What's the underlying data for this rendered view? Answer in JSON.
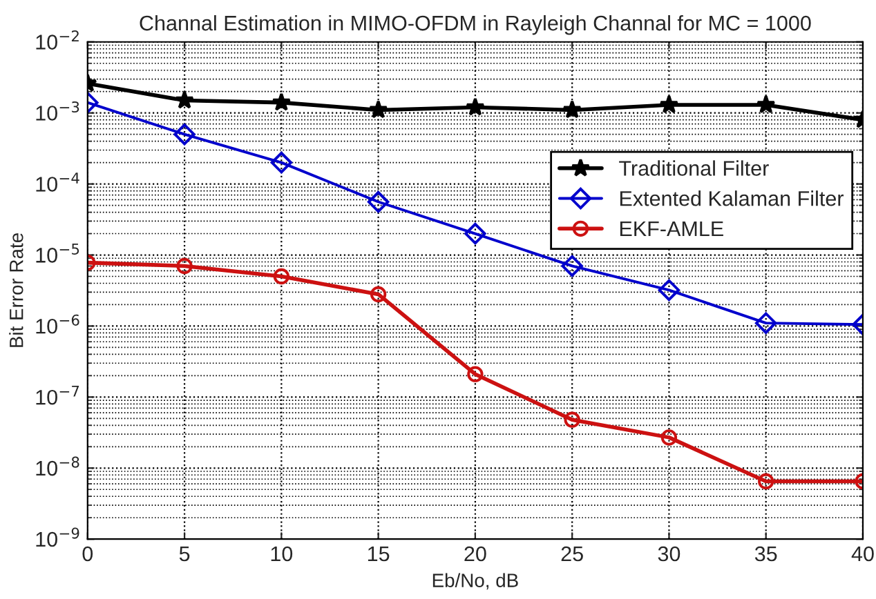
{
  "chart_data": {
    "type": "line",
    "title": "Channal Estimation in MIMO-OFDM in Rayleigh Channal for MC = 1000",
    "xlabel": "Eb/No, dB",
    "ylabel": "Bit Error Rate",
    "x": [
      0,
      5,
      10,
      15,
      20,
      25,
      30,
      35,
      40
    ],
    "series": [
      {
        "name": "Traditional Filter",
        "color": "#000000",
        "marker": "star",
        "values": [
          0.0026,
          0.0015,
          0.0014,
          0.0011,
          0.0012,
          0.0011,
          0.0013,
          0.0013,
          0.0008
        ]
      },
      {
        "name": "Extented Kalaman Filter",
        "color": "#0000cc",
        "marker": "diamond",
        "values": [
          0.0014,
          0.0005,
          0.0002,
          5.6e-05,
          2e-05,
          7e-06,
          3.2e-06,
          1.1e-06,
          1.05e-06
        ]
      },
      {
        "name": "EKF-AMLE",
        "color": "#cc1111",
        "marker": "circle",
        "values": [
          7.8e-06,
          7e-06,
          5e-06,
          2.8e-06,
          2.1e-07,
          4.8e-08,
          2.7e-08,
          6.5e-09,
          6.5e-09
        ]
      }
    ],
    "log": "y",
    "xlim": [
      0,
      40
    ],
    "xticks": [
      0,
      5,
      10,
      15,
      20,
      25,
      30,
      35,
      40
    ],
    "ylim": [
      1e-09,
      0.01
    ],
    "yticks": [
      {
        "value": 1e-09,
        "label": "10$^{−9}$"
      },
      {
        "value": 1e-08,
        "label": "10$^{−8}$"
      },
      {
        "value": 1e-07,
        "label": "10$^{−7}$"
      },
      {
        "value": 1e-06,
        "label": "10$^{−6}$"
      },
      {
        "value": 1e-05,
        "label": "10$^{−5}$"
      },
      {
        "value": 0.0001,
        "label": "10$^{−4}$"
      },
      {
        "value": 0.001,
        "label": "10$^{−3}$"
      },
      {
        "value": 0.01,
        "label": "10$^{−2}$"
      }
    ],
    "grid": true,
    "legend": "top right",
    "line_style": "solid"
  }
}
